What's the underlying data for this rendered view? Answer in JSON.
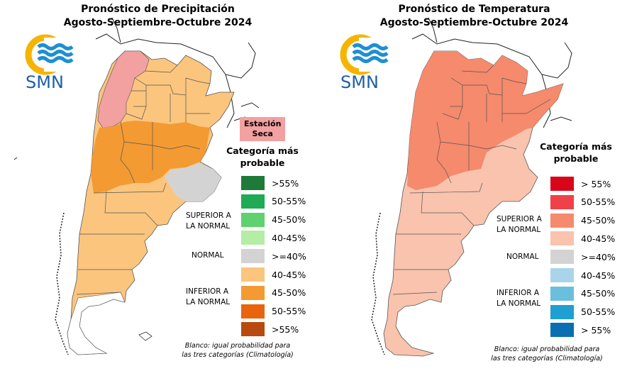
{
  "agency": {
    "logo_text": "SMN"
  },
  "precip": {
    "title_line1": "Pronóstico de Precipitación",
    "title_line2": "Agosto-Septiembre-Octubre 2024",
    "station_label_line1": "Estación",
    "station_label_line2": "Seca",
    "legend_title_line1": "Categoría más",
    "legend_title_line2": "probable",
    "groups": {
      "superior_line1": "SUPERIOR A",
      "superior_line2": "LA NORMAL",
      "normal": "NORMAL",
      "inferior_line1": "INFERIOR A",
      "inferior_line2": "LA NORMAL"
    },
    "legend": [
      {
        "label": ">55%",
        "color": "#1f7a3a"
      },
      {
        "label": "50-55%",
        "color": "#1faa55"
      },
      {
        "label": "45-50%",
        "color": "#5fd16e"
      },
      {
        "label": "40-45%",
        "color": "#b4eda4"
      },
      {
        "label": ">=40%",
        "color": "#d3d3d3"
      },
      {
        "label": "40-45%",
        "color": "#fbc57e"
      },
      {
        "label": "45-50%",
        "color": "#f39a32"
      },
      {
        "label": "50-55%",
        "color": "#e8650e"
      },
      {
        "label": ">55%",
        "color": "#b84a0f"
      }
    ],
    "note_line1": "Blanco: igual probabilidad para",
    "note_line2": "las tres categorías (Climatología)",
    "station_color": "#f3a0a0"
  },
  "temp": {
    "title_line1": "Pronóstico de Temperatura",
    "title_line2": "Agosto-Septiembre-Octubre 2024",
    "legend_title_line1": "Categoría más",
    "legend_title_line2": "probable",
    "groups": {
      "superior_line1": "SUPERIOR A",
      "superior_line2": "LA NORMAL",
      "normal": "NORMAL",
      "inferior_line1": "INFERIOR A",
      "inferior_line2": "LA NORMAL"
    },
    "legend": [
      {
        "label": "> 55%",
        "color": "#d9061a"
      },
      {
        "label": "50-55%",
        "color": "#ef4147"
      },
      {
        "label": "45-50%",
        "color": "#f58a6c"
      },
      {
        "label": "40-45%",
        "color": "#f9c3ad"
      },
      {
        "label": ">=40%",
        "color": "#d3d3d3"
      },
      {
        "label": "40-45%",
        "color": "#aad4ea"
      },
      {
        "label": "45-50%",
        "color": "#6bbfde"
      },
      {
        "label": "50-55%",
        "color": "#1f9fd2"
      },
      {
        "label": "> 55%",
        "color": "#0a6fb0"
      }
    ],
    "note_line1": "Blanco: igual probabilidad para",
    "note_line2": "las tres categorías (Climatología)"
  }
}
